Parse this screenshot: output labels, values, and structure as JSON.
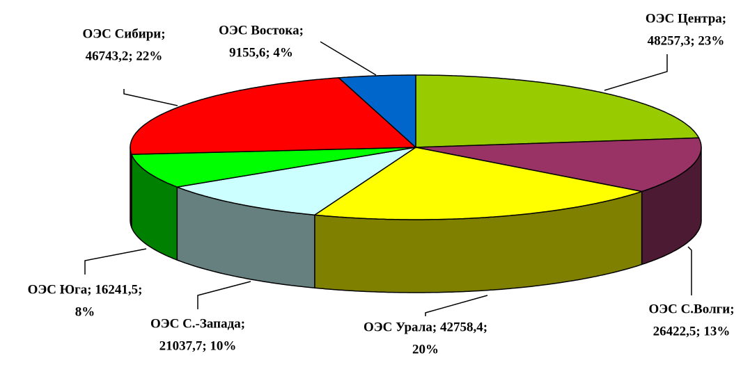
{
  "chart_data": {
    "type": "pie3d",
    "value_labels": [
      [
        "ОЭС Центра;",
        "48257,3; 23%"
      ],
      [
        "ОЭС С.Волги;",
        "26422,5; 13%"
      ],
      [
        "ОЭС Урала; 42758,4;",
        "20%"
      ],
      [
        "ОЭС С.-Запада;",
        "21037,7; 10%"
      ],
      [
        "ОЭС Юга; 16241,5;",
        "8%"
      ],
      [
        "ОЭС Сибири;",
        "46743,2; 22%"
      ],
      [
        "ОЭС Востока;",
        "9155,6; 4%"
      ]
    ],
    "values": [
      48257.3,
      26422.5,
      42758.4,
      21037.7,
      16241.5,
      46743.2,
      9155.6
    ],
    "colors": [
      "#99cc00",
      "#993366",
      "#ffff00",
      "#ccffff",
      "#00ff00",
      "#ff0000",
      "#0066cc"
    ]
  }
}
